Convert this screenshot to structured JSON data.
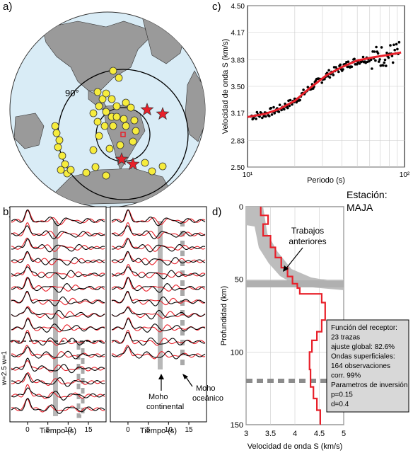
{
  "panels": {
    "a": {
      "label": "a)",
      "angle_label": "90°",
      "colors": {
        "ocean": "#d9ecf6",
        "land": "#9a9a9a",
        "event": "#f6ec3c",
        "station": "#e8202a"
      }
    },
    "b": {
      "label": "b)",
      "xlabel": "Tiempo (s)",
      "xticks": [
        "0",
        "5",
        "10",
        "15"
      ],
      "side_label": "w=2.5 w=1",
      "annot_moho_continental": [
        "Moho",
        "continental"
      ],
      "annot_moho_oceanico": [
        "Moho",
        "oceánico"
      ],
      "trace_colors": {
        "observed": "#000000",
        "synthetic": "#e8202a"
      }
    },
    "c": {
      "label": "c)",
      "chart_data": {
        "type": "scatter",
        "xlabel": "Periodo (s)",
        "ylabel": "Velocidad de onda S (km/s)",
        "xscale": "log",
        "xlim": [
          10,
          100
        ],
        "ylim": [
          2.5,
          4.5
        ],
        "xticks": [
          {
            "value": 10,
            "label": "10¹"
          },
          {
            "value": 100,
            "label": "10²"
          }
        ],
        "yticks": [
          "2.50",
          "2.83",
          "3.17",
          "3.50",
          "3.83",
          "4.17",
          "4.50"
        ],
        "fit_curve": {
          "x": [
            10,
            13,
            16,
            20,
            25,
            32,
            40,
            50,
            63,
            79,
            95
          ],
          "y": [
            3.12,
            3.16,
            3.22,
            3.32,
            3.48,
            3.64,
            3.74,
            3.82,
            3.86,
            3.89,
            3.92
          ],
          "color": "#e8202a"
        },
        "points_color": "#000000"
      }
    },
    "d": {
      "label": "d)",
      "station_title": [
        "Estación:",
        "MAJA"
      ],
      "annot_previous": [
        "Trabajos",
        "anteriores"
      ],
      "chart_data": {
        "type": "line",
        "xlabel": "Velocidad de onda S (km/s)",
        "ylabel": "Profundidad (km)",
        "xlim": [
          3,
          5
        ],
        "ylim": [
          150,
          0
        ],
        "xticks": [
          "3",
          "3.5",
          "4",
          "4.5",
          "5"
        ],
        "yticks": [
          "0",
          "50",
          "100",
          "150"
        ],
        "model": {
          "velocity": [
            3.3,
            3.3,
            3.45,
            3.45,
            3.35,
            3.35,
            3.5,
            3.5,
            3.6,
            3.6,
            3.72,
            3.72,
            3.85,
            3.85,
            3.95,
            3.95,
            4.05,
            4.05,
            4.1,
            4.1,
            4.55,
            4.55,
            4.62,
            4.62,
            4.55,
            4.55,
            4.45,
            4.45,
            4.35,
            4.35,
            4.3,
            4.3,
            4.32,
            4.32,
            4.38,
            4.38,
            4.45,
            4.45,
            4.52,
            4.52
          ],
          "depth": [
            0,
            6,
            6,
            12,
            12,
            20,
            20,
            28,
            28,
            35,
            35,
            42,
            42,
            48,
            48,
            53,
            53,
            56,
            56,
            60,
            60,
            66,
            66,
            78,
            78,
            86,
            86,
            92,
            92,
            100,
            100,
            112,
            112,
            124,
            124,
            132,
            132,
            140,
            140,
            150
          ],
          "color": "#e8202a"
        },
        "moho_continental_depth": 55,
        "moho_oceanic_depth": 120
      },
      "info_box": [
        "Función del receptor:",
        "23 trazas",
        "ajuste global: 82.6%",
        "Ondas superficiales:",
        "164 observaciones",
        "corr. 99%",
        "Parametros de inversión",
        "p=0.15",
        "d=0.4"
      ]
    }
  }
}
